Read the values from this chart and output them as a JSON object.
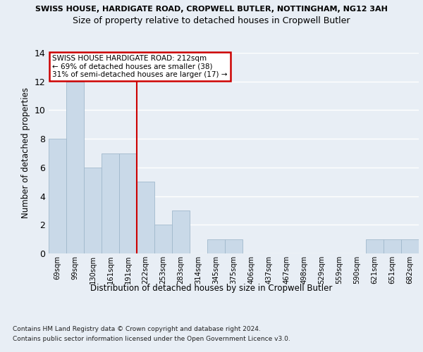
{
  "title1": "SWISS HOUSE, HARDIGATE ROAD, CROPWELL BUTLER, NOTTINGHAM, NG12 3AH",
  "title2": "Size of property relative to detached houses in Cropwell Butler",
  "xlabel": "Distribution of detached houses by size in Cropwell Butler",
  "ylabel": "Number of detached properties",
  "footer1": "Contains HM Land Registry data © Crown copyright and database right 2024.",
  "footer2": "Contains public sector information licensed under the Open Government Licence v3.0.",
  "bins": [
    "69sqm",
    "99sqm",
    "130sqm",
    "161sqm",
    "191sqm",
    "222sqm",
    "253sqm",
    "283sqm",
    "314sqm",
    "345sqm",
    "375sqm",
    "406sqm",
    "437sqm",
    "467sqm",
    "498sqm",
    "529sqm",
    "559sqm",
    "590sqm",
    "621sqm",
    "651sqm",
    "682sqm"
  ],
  "counts": [
    8,
    12,
    6,
    7,
    7,
    5,
    2,
    3,
    0,
    1,
    1,
    0,
    0,
    0,
    0,
    0,
    0,
    0,
    1,
    1,
    1
  ],
  "bar_color": "#c9d9e8",
  "bar_edge_color": "#a0b8cc",
  "vline_x_pos": 4.5,
  "vline_color": "#cc0000",
  "annotation_title": "SWISS HOUSE HARDIGATE ROAD: 212sqm",
  "annotation_line2": "← 69% of detached houses are smaller (38)",
  "annotation_line3": "31% of semi-detached houses are larger (17) →",
  "annotation_box_color": "#ffffff",
  "annotation_box_edge": "#cc0000",
  "ylim": [
    0,
    14
  ],
  "yticks": [
    0,
    2,
    4,
    6,
    8,
    10,
    12,
    14
  ],
  "background_color": "#e8eef5",
  "plot_bg_color": "#e8eef5",
  "title1_fontsize": 8.0,
  "title2_fontsize": 9.0
}
